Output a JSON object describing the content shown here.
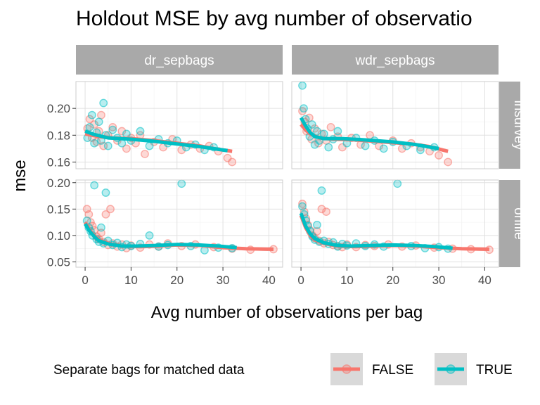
{
  "title": "Holdout MSE by avg number of observatio",
  "colors": {
    "false": "#F8766D",
    "true": "#00BFC4",
    "strip": "#A9A9A9",
    "grid": "#E0E0E0",
    "panel_border": "#CCCCCC",
    "band": "#B0B0B0"
  },
  "chart_data": {
    "type": "scatter",
    "facet_cols": [
      "dr_sepbags",
      "wdr_sepbags"
    ],
    "facet_rows": [
      "insurvey",
      "onfile"
    ],
    "xlabel": "Avg number of observations per bag",
    "ylabel": "mse",
    "xlim": [
      -2,
      43
    ],
    "x_ticks": [
      0,
      10,
      20,
      30,
      40
    ],
    "x_tick_labels": [
      "0",
      "10",
      "20",
      "30",
      "40"
    ],
    "rows": [
      {
        "name": "insurvey",
        "ylim": [
          0.155,
          0.22
        ],
        "y_ticks": [
          0.16,
          0.18,
          0.2
        ],
        "y_tick_labels": [
          "0.16",
          "0.18",
          "0.20"
        ]
      },
      {
        "name": "onfile",
        "ylim": [
          0.04,
          0.205
        ],
        "y_ticks": [
          0.05,
          0.1,
          0.15,
          0.2
        ],
        "y_tick_labels": [
          "0.05",
          "0.10",
          "0.15",
          "0.20"
        ]
      }
    ],
    "legend": {
      "title": "Separate bags for matched data",
      "entries": [
        "FALSE",
        "TRUE"
      ],
      "position": "bottom"
    },
    "series": [
      {
        "key": "FALSE",
        "panel": "dr_sepbags|insurvey",
        "smooth": [
          [
            0,
            0.181
          ],
          [
            3,
            0.179
          ],
          [
            6,
            0.178
          ],
          [
            10,
            0.1775
          ],
          [
            15,
            0.176
          ],
          [
            20,
            0.174
          ],
          [
            25,
            0.172
          ],
          [
            28,
            0.17
          ],
          [
            32,
            0.168
          ]
        ],
        "points": [
          [
            0.5,
            0.185
          ],
          [
            1,
            0.192
          ],
          [
            1.5,
            0.178
          ],
          [
            2,
            0.188
          ],
          [
            2.5,
            0.175
          ],
          [
            3,
            0.183
          ],
          [
            3.5,
            0.195
          ],
          [
            4,
            0.172
          ],
          [
            5,
            0.18
          ],
          [
            6,
            0.186
          ],
          [
            7,
            0.176
          ],
          [
            8,
            0.183
          ],
          [
            9,
            0.17
          ],
          [
            10,
            0.178
          ],
          [
            11,
            0.174
          ],
          [
            12,
            0.18
          ],
          [
            13,
            0.166
          ],
          [
            15,
            0.175
          ],
          [
            17,
            0.171
          ],
          [
            19,
            0.177
          ],
          [
            21,
            0.169
          ],
          [
            23,
            0.173
          ],
          [
            25,
            0.17
          ],
          [
            27,
            0.172
          ],
          [
            29,
            0.168
          ],
          [
            31,
            0.163
          ],
          [
            32,
            0.16
          ]
        ]
      },
      {
        "key": "TRUE",
        "panel": "dr_sepbags|insurvey",
        "smooth": [
          [
            0,
            0.183
          ],
          [
            2,
            0.1805
          ],
          [
            5,
            0.178
          ],
          [
            10,
            0.177
          ],
          [
            15,
            0.1755
          ],
          [
            20,
            0.1735
          ],
          [
            25,
            0.1715
          ],
          [
            28,
            0.17
          ],
          [
            31,
            0.1685
          ]
        ],
        "points": [
          [
            0.5,
            0.178
          ],
          [
            1,
            0.186
          ],
          [
            1.5,
            0.195
          ],
          [
            2,
            0.174
          ],
          [
            2.5,
            0.182
          ],
          [
            3,
            0.19
          ],
          [
            3.5,
            0.176
          ],
          [
            4,
            0.204
          ],
          [
            4.5,
            0.18
          ],
          [
            5,
            0.172
          ],
          [
            6,
            0.184
          ],
          [
            7,
            0.178
          ],
          [
            8,
            0.174
          ],
          [
            9,
            0.181
          ],
          [
            10,
            0.176
          ],
          [
            12,
            0.183
          ],
          [
            14,
            0.172
          ],
          [
            16,
            0.177
          ],
          [
            18,
            0.174
          ],
          [
            20,
            0.176
          ],
          [
            22,
            0.171
          ],
          [
            24,
            0.173
          ],
          [
            26,
            0.169
          ],
          [
            28,
            0.171
          ]
        ]
      },
      {
        "key": "FALSE",
        "panel": "wdr_sepbags|insurvey",
        "smooth": [
          [
            0,
            0.188
          ],
          [
            1,
            0.184
          ],
          [
            2,
            0.181
          ],
          [
            4,
            0.178
          ],
          [
            7,
            0.177
          ],
          [
            12,
            0.1765
          ],
          [
            18,
            0.175
          ],
          [
            24,
            0.1735
          ],
          [
            28,
            0.1715
          ],
          [
            32,
            0.168
          ]
        ],
        "points": [
          [
            0.3,
            0.198
          ],
          [
            0.8,
            0.19
          ],
          [
            1.2,
            0.183
          ],
          [
            1.8,
            0.193
          ],
          [
            2.3,
            0.177
          ],
          [
            3,
            0.185
          ],
          [
            3.8,
            0.174
          ],
          [
            4.5,
            0.181
          ],
          [
            5.5,
            0.176
          ],
          [
            6.5,
            0.186
          ],
          [
            8,
            0.179
          ],
          [
            9,
            0.171
          ],
          [
            11,
            0.178
          ],
          [
            13,
            0.173
          ],
          [
            15,
            0.18
          ],
          [
            17,
            0.172
          ],
          [
            20,
            0.176
          ],
          [
            22,
            0.17
          ],
          [
            24,
            0.174
          ],
          [
            26,
            0.171
          ],
          [
            28,
            0.168
          ],
          [
            30,
            0.165
          ],
          [
            32,
            0.16
          ]
        ]
      },
      {
        "key": "TRUE",
        "panel": "wdr_sepbags|insurvey",
        "smooth": [
          [
            0,
            0.193
          ],
          [
            1,
            0.187
          ],
          [
            2,
            0.182
          ],
          [
            3,
            0.179
          ],
          [
            5,
            0.1775
          ],
          [
            9,
            0.1775
          ],
          [
            14,
            0.1765
          ],
          [
            20,
            0.175
          ],
          [
            25,
            0.173
          ],
          [
            30,
            0.17
          ]
        ],
        "points": [
          [
            0.3,
            0.217
          ],
          [
            0.6,
            0.2
          ],
          [
            1,
            0.192
          ],
          [
            1.4,
            0.185
          ],
          [
            1.9,
            0.179
          ],
          [
            2.4,
            0.188
          ],
          [
            3,
            0.173
          ],
          [
            3.5,
            0.183
          ],
          [
            4,
            0.176
          ],
          [
            5,
            0.181
          ],
          [
            6,
            0.171
          ],
          [
            7,
            0.177
          ],
          [
            8,
            0.183
          ],
          [
            10,
            0.174
          ],
          [
            12,
            0.178
          ],
          [
            14,
            0.172
          ],
          [
            16,
            0.176
          ],
          [
            18,
            0.17
          ],
          [
            20,
            0.175
          ],
          [
            23,
            0.172
          ],
          [
            26,
            0.169
          ],
          [
            29,
            0.171
          ]
        ]
      },
      {
        "key": "FALSE",
        "panel": "dr_sepbags|onfile",
        "smooth": [
          [
            0,
            0.125
          ],
          [
            1,
            0.11
          ],
          [
            2,
            0.1
          ],
          [
            3,
            0.092
          ],
          [
            5,
            0.085
          ],
          [
            8,
            0.08
          ],
          [
            12,
            0.079
          ],
          [
            16,
            0.08
          ],
          [
            20,
            0.082
          ],
          [
            25,
            0.081
          ],
          [
            30,
            0.077
          ],
          [
            35,
            0.075
          ],
          [
            41,
            0.074
          ]
        ],
        "points": [
          [
            0.4,
            0.15
          ],
          [
            0.8,
            0.14
          ],
          [
            1.2,
            0.125
          ],
          [
            1.6,
            0.118
          ],
          [
            2,
            0.11
          ],
          [
            2.5,
            0.098
          ],
          [
            3,
            0.093
          ],
          [
            3.5,
            0.105
          ],
          [
            4,
            0.088
          ],
          [
            4.5,
            0.14
          ],
          [
            5,
            0.082
          ],
          [
            5.5,
            0.15
          ],
          [
            6,
            0.085
          ],
          [
            7,
            0.079
          ],
          [
            8,
            0.083
          ],
          [
            9,
            0.076
          ],
          [
            10,
            0.081
          ],
          [
            12,
            0.077
          ],
          [
            14,
            0.083
          ],
          [
            16,
            0.079
          ],
          [
            18,
            0.085
          ],
          [
            21,
            0.08
          ],
          [
            24,
            0.083
          ],
          [
            28,
            0.078
          ],
          [
            32,
            0.075
          ],
          [
            36,
            0.073
          ],
          [
            41,
            0.074
          ]
        ]
      },
      {
        "key": "TRUE",
        "panel": "dr_sepbags|onfile",
        "smooth": [
          [
            0,
            0.122
          ],
          [
            1,
            0.108
          ],
          [
            2,
            0.098
          ],
          [
            3,
            0.09
          ],
          [
            5,
            0.084
          ],
          [
            8,
            0.08
          ],
          [
            11,
            0.08
          ],
          [
            15,
            0.081
          ],
          [
            20,
            0.083
          ],
          [
            25,
            0.082
          ],
          [
            29,
            0.08
          ],
          [
            33,
            0.077
          ]
        ],
        "points": [
          [
            0.4,
            0.128
          ],
          [
            0.8,
            0.115
          ],
          [
            1.2,
            0.108
          ],
          [
            1.6,
            0.1
          ],
          [
            2,
            0.195
          ],
          [
            2.5,
            0.093
          ],
          [
            3,
            0.088
          ],
          [
            3.5,
            0.115
          ],
          [
            4,
            0.085
          ],
          [
            4.5,
            0.181
          ],
          [
            5,
            0.09
          ],
          [
            6,
            0.082
          ],
          [
            7,
            0.086
          ],
          [
            8,
            0.078
          ],
          [
            9,
            0.083
          ],
          [
            10,
            0.08
          ],
          [
            12,
            0.084
          ],
          [
            14,
            0.1
          ],
          [
            16,
            0.079
          ],
          [
            18,
            0.082
          ],
          [
            21,
            0.198
          ],
          [
            23,
            0.08
          ],
          [
            26,
            0.072
          ],
          [
            29,
            0.077
          ],
          [
            32,
            0.076
          ]
        ]
      },
      {
        "key": "FALSE",
        "panel": "wdr_sepbags|onfile",
        "smooth": [
          [
            0,
            0.138
          ],
          [
            1,
            0.115
          ],
          [
            2,
            0.1
          ],
          [
            3,
            0.092
          ],
          [
            5,
            0.085
          ],
          [
            8,
            0.08
          ],
          [
            12,
            0.079
          ],
          [
            16,
            0.08
          ],
          [
            20,
            0.081
          ],
          [
            25,
            0.08
          ],
          [
            30,
            0.077
          ],
          [
            35,
            0.075
          ],
          [
            41,
            0.074
          ]
        ],
        "points": [
          [
            0.3,
            0.16
          ],
          [
            0.7,
            0.145
          ],
          [
            1.1,
            0.132
          ],
          [
            1.5,
            0.12
          ],
          [
            2,
            0.11
          ],
          [
            2.5,
            0.1
          ],
          [
            3,
            0.095
          ],
          [
            3.5,
            0.108
          ],
          [
            4,
            0.09
          ],
          [
            4.5,
            0.15
          ],
          [
            5,
            0.085
          ],
          [
            5.5,
            0.145
          ],
          [
            6,
            0.088
          ],
          [
            7,
            0.082
          ],
          [
            8,
            0.08
          ],
          [
            9,
            0.078
          ],
          [
            10,
            0.083
          ],
          [
            12,
            0.078
          ],
          [
            14,
            0.082
          ],
          [
            16,
            0.08
          ],
          [
            19,
            0.083
          ],
          [
            22,
            0.079
          ],
          [
            25,
            0.081
          ],
          [
            29,
            0.077
          ],
          [
            33,
            0.075
          ],
          [
            37,
            0.074
          ],
          [
            41,
            0.073
          ]
        ]
      },
      {
        "key": "TRUE",
        "panel": "wdr_sepbags|onfile",
        "smooth": [
          [
            0,
            0.142
          ],
          [
            1,
            0.118
          ],
          [
            2,
            0.103
          ],
          [
            3,
            0.094
          ],
          [
            5,
            0.086
          ],
          [
            8,
            0.081
          ],
          [
            11,
            0.08
          ],
          [
            15,
            0.081
          ],
          [
            20,
            0.082
          ],
          [
            25,
            0.081
          ],
          [
            29,
            0.079
          ],
          [
            33,
            0.076
          ]
        ],
        "points": [
          [
            0.3,
            0.155
          ],
          [
            0.7,
            0.14
          ],
          [
            1.1,
            0.128
          ],
          [
            1.5,
            0.118
          ],
          [
            2,
            0.108
          ],
          [
            2.5,
            0.098
          ],
          [
            3,
            0.092
          ],
          [
            3.5,
            0.12
          ],
          [
            4,
            0.088
          ],
          [
            4.5,
            0.185
          ],
          [
            5,
            0.09
          ],
          [
            6,
            0.084
          ],
          [
            7,
            0.087
          ],
          [
            8,
            0.079
          ],
          [
            9,
            0.084
          ],
          [
            10,
            0.081
          ],
          [
            12,
            0.085
          ],
          [
            14,
            0.08
          ],
          [
            16,
            0.083
          ],
          [
            18,
            0.079
          ],
          [
            21,
            0.198
          ],
          [
            24,
            0.08
          ],
          [
            27,
            0.076
          ],
          [
            30,
            0.078
          ],
          [
            32,
            0.075
          ]
        ]
      }
    ]
  }
}
